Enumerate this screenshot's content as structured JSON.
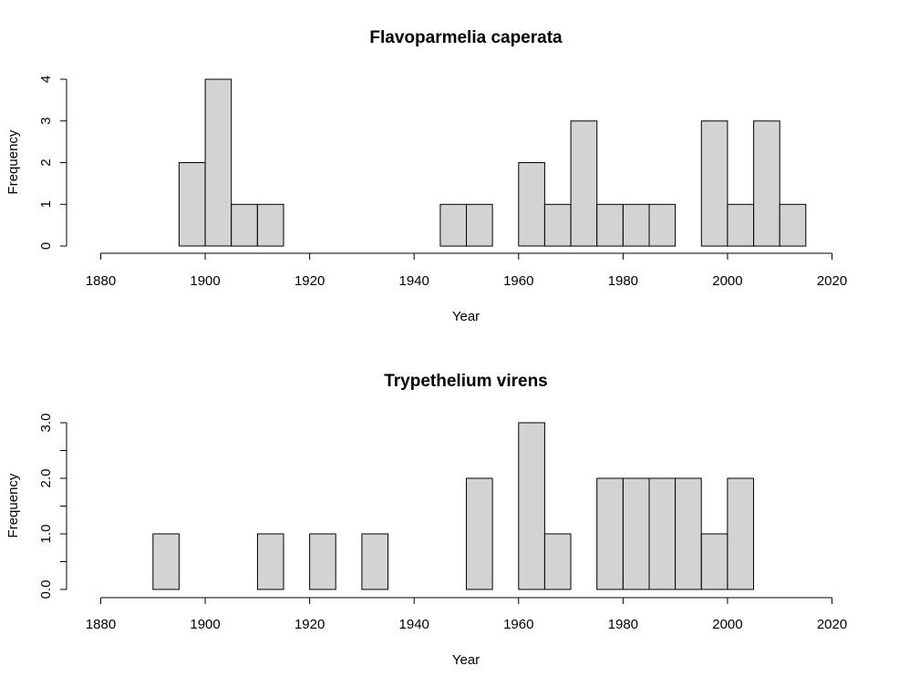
{
  "colors": {
    "bar_fill": "#d3d3d3",
    "bar_stroke": "#000000",
    "background": "#ffffff"
  },
  "chart_data": [
    {
      "type": "bar",
      "subtype": "histogram",
      "title": "Flavoparmelia caperata",
      "xlabel": "Year",
      "ylabel": "Frequency",
      "xlim": [
        1880,
        2020
      ],
      "ylim": [
        0,
        4
      ],
      "x_ticks": [
        1880,
        1900,
        1920,
        1940,
        1960,
        1980,
        2000,
        2020
      ],
      "x_tick_labels": [
        "1880",
        "1900",
        "1920",
        "1940",
        "1960",
        "1980",
        "2000",
        "2020"
      ],
      "y_ticks": [
        0,
        1,
        2,
        3,
        4
      ],
      "y_tick_labels": [
        "0",
        "1",
        "2",
        "3",
        "4"
      ],
      "bin_width": 5,
      "bins": [
        {
          "start": 1895,
          "end": 1900,
          "count": 2
        },
        {
          "start": 1900,
          "end": 1905,
          "count": 4
        },
        {
          "start": 1905,
          "end": 1910,
          "count": 1
        },
        {
          "start": 1910,
          "end": 1915,
          "count": 1
        },
        {
          "start": 1915,
          "end": 1920,
          "count": 0
        },
        {
          "start": 1920,
          "end": 1925,
          "count": 0
        },
        {
          "start": 1925,
          "end": 1930,
          "count": 0
        },
        {
          "start": 1930,
          "end": 1935,
          "count": 0
        },
        {
          "start": 1935,
          "end": 1940,
          "count": 0
        },
        {
          "start": 1940,
          "end": 1945,
          "count": 0
        },
        {
          "start": 1945,
          "end": 1950,
          "count": 1
        },
        {
          "start": 1950,
          "end": 1955,
          "count": 1
        },
        {
          "start": 1955,
          "end": 1960,
          "count": 0
        },
        {
          "start": 1960,
          "end": 1965,
          "count": 2
        },
        {
          "start": 1965,
          "end": 1970,
          "count": 1
        },
        {
          "start": 1970,
          "end": 1975,
          "count": 3
        },
        {
          "start": 1975,
          "end": 1980,
          "count": 1
        },
        {
          "start": 1980,
          "end": 1985,
          "count": 1
        },
        {
          "start": 1985,
          "end": 1990,
          "count": 1
        },
        {
          "start": 1990,
          "end": 1995,
          "count": 0
        },
        {
          "start": 1995,
          "end": 2000,
          "count": 3
        },
        {
          "start": 2000,
          "end": 2005,
          "count": 1
        },
        {
          "start": 2005,
          "end": 2010,
          "count": 3
        },
        {
          "start": 2010,
          "end": 2015,
          "count": 1
        }
      ]
    },
    {
      "type": "bar",
      "subtype": "histogram",
      "title": "Trypethelium virens",
      "xlabel": "Year",
      "ylabel": "Frequency",
      "xlim": [
        1880,
        2020
      ],
      "ylim": [
        0,
        3
      ],
      "x_ticks": [
        1880,
        1900,
        1920,
        1940,
        1960,
        1980,
        2000,
        2020
      ],
      "x_tick_labels": [
        "1880",
        "1900",
        "1920",
        "1940",
        "1960",
        "1980",
        "2000",
        "2020"
      ],
      "y_ticks": [
        0,
        0.5,
        1,
        1.5,
        2,
        2.5,
        3
      ],
      "y_tick_labels": [
        "0.0",
        "",
        "1.0",
        "",
        "2.0",
        "",
        "3.0"
      ],
      "bin_width": 5,
      "bins": [
        {
          "start": 1890,
          "end": 1895,
          "count": 1
        },
        {
          "start": 1895,
          "end": 1900,
          "count": 0
        },
        {
          "start": 1900,
          "end": 1905,
          "count": 0
        },
        {
          "start": 1905,
          "end": 1910,
          "count": 0
        },
        {
          "start": 1910,
          "end": 1915,
          "count": 1
        },
        {
          "start": 1915,
          "end": 1920,
          "count": 0
        },
        {
          "start": 1920,
          "end": 1925,
          "count": 1
        },
        {
          "start": 1925,
          "end": 1930,
          "count": 0
        },
        {
          "start": 1930,
          "end": 1935,
          "count": 1
        },
        {
          "start": 1935,
          "end": 1940,
          "count": 0
        },
        {
          "start": 1940,
          "end": 1945,
          "count": 0
        },
        {
          "start": 1945,
          "end": 1950,
          "count": 0
        },
        {
          "start": 1950,
          "end": 1955,
          "count": 2
        },
        {
          "start": 1955,
          "end": 1960,
          "count": 0
        },
        {
          "start": 1960,
          "end": 1965,
          "count": 3
        },
        {
          "start": 1965,
          "end": 1970,
          "count": 1
        },
        {
          "start": 1970,
          "end": 1975,
          "count": 0
        },
        {
          "start": 1975,
          "end": 1980,
          "count": 2
        },
        {
          "start": 1980,
          "end": 1985,
          "count": 2
        },
        {
          "start": 1985,
          "end": 1990,
          "count": 2
        },
        {
          "start": 1990,
          "end": 1995,
          "count": 2
        },
        {
          "start": 1995,
          "end": 2000,
          "count": 1
        },
        {
          "start": 2000,
          "end": 2005,
          "count": 2
        }
      ]
    }
  ]
}
